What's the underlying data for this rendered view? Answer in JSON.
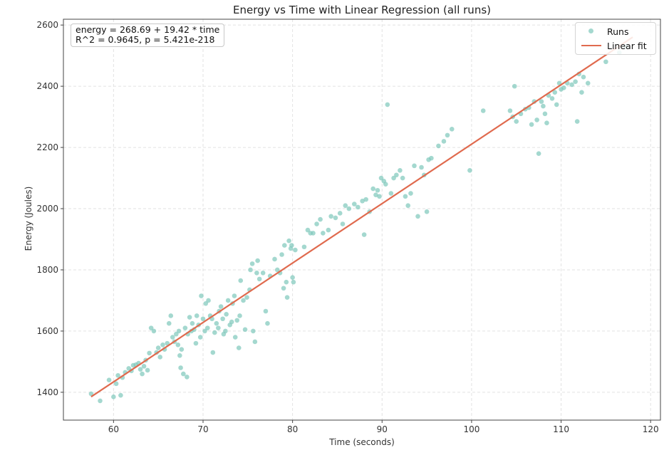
{
  "chart_data": {
    "type": "scatter",
    "title": "Energy vs Time with Linear Regression (all runs)",
    "xlabel": "Time (seconds)",
    "ylabel": "Energy (Joules)",
    "xlim": [
      54.4,
      121.1
    ],
    "ylim": [
      1309,
      2619
    ],
    "xticks": [
      60,
      70,
      80,
      90,
      100,
      110,
      120
    ],
    "yticks": [
      1400,
      1600,
      1800,
      2000,
      2200,
      2400,
      2600
    ],
    "grid": true,
    "legend_position": "upper right",
    "legend": [
      "Runs",
      "Linear fit"
    ],
    "annotation": {
      "line1": "energy = 268.69 + 19.42 * time",
      "line2": "R^2 = 0.9645, p = 5.421e-218"
    },
    "regression": {
      "intercept": 268.69,
      "slope": 19.42,
      "r_squared": 0.9645,
      "p_value": "5.421e-218",
      "x_range": [
        57.5,
        118
      ]
    },
    "colors": {
      "points": "#7ec8bb",
      "fit_line": "#e06a4e"
    },
    "series": [
      {
        "name": "Runs",
        "type": "scatter",
        "points": [
          [
            57.5,
            1395
          ],
          [
            58.5,
            1372
          ],
          [
            59.5,
            1440
          ],
          [
            60,
            1385
          ],
          [
            60.3,
            1428
          ],
          [
            60.5,
            1455
          ],
          [
            60.8,
            1390
          ],
          [
            61,
            1448
          ],
          [
            61.3,
            1465
          ],
          [
            61.7,
            1478
          ],
          [
            62,
            1470
          ],
          [
            62.2,
            1488
          ],
          [
            62.5,
            1490
          ],
          [
            62.8,
            1495
          ],
          [
            63,
            1475
          ],
          [
            63.2,
            1460
          ],
          [
            63.4,
            1485
          ],
          [
            63.6,
            1505
          ],
          [
            63.8,
            1472
          ],
          [
            64,
            1528
          ],
          [
            64.2,
            1610
          ],
          [
            64.5,
            1600
          ],
          [
            64.8,
            1530
          ],
          [
            65,
            1545
          ],
          [
            65.2,
            1515
          ],
          [
            65.5,
            1555
          ],
          [
            65.7,
            1540
          ],
          [
            66,
            1560
          ],
          [
            66.2,
            1625
          ],
          [
            66.4,
            1650
          ],
          [
            66.6,
            1580
          ],
          [
            66.8,
            1565
          ],
          [
            67,
            1590
          ],
          [
            67.2,
            1555
          ],
          [
            67.3,
            1600
          ],
          [
            67.4,
            1520
          ],
          [
            67.5,
            1480
          ],
          [
            67.6,
            1540
          ],
          [
            67.8,
            1460
          ],
          [
            68,
            1610
          ],
          [
            68.2,
            1450
          ],
          [
            68.3,
            1590
          ],
          [
            68.5,
            1645
          ],
          [
            68.7,
            1600
          ],
          [
            68.8,
            1625
          ],
          [
            69,
            1605
          ],
          [
            69.2,
            1560
          ],
          [
            69.3,
            1650
          ],
          [
            69.5,
            1620
          ],
          [
            69.7,
            1580
          ],
          [
            69.8,
            1715
          ],
          [
            70,
            1640
          ],
          [
            70.2,
            1600
          ],
          [
            70.3,
            1690
          ],
          [
            70.5,
            1610
          ],
          [
            70.6,
            1700
          ],
          [
            70.8,
            1650
          ],
          [
            71,
            1640
          ],
          [
            71.1,
            1530
          ],
          [
            71.3,
            1595
          ],
          [
            71.5,
            1625
          ],
          [
            71.7,
            1610
          ],
          [
            71.8,
            1665
          ],
          [
            72,
            1680
          ],
          [
            72.2,
            1640
          ],
          [
            72.3,
            1590
          ],
          [
            72.5,
            1600
          ],
          [
            72.6,
            1655
          ],
          [
            72.8,
            1700
          ],
          [
            73,
            1620
          ],
          [
            73.2,
            1630
          ],
          [
            73.3,
            1690
          ],
          [
            73.5,
            1715
          ],
          [
            73.6,
            1580
          ],
          [
            73.8,
            1635
          ],
          [
            74,
            1545
          ],
          [
            74.1,
            1650
          ],
          [
            74.2,
            1765
          ],
          [
            74.5,
            1700
          ],
          [
            74.7,
            1605
          ],
          [
            74.9,
            1710
          ],
          [
            75.2,
            1735
          ],
          [
            75.3,
            1800
          ],
          [
            75.5,
            1820
          ],
          [
            75.6,
            1600
          ],
          [
            75.8,
            1565
          ],
          [
            76,
            1790
          ],
          [
            76.1,
            1830
          ],
          [
            76.3,
            1770
          ],
          [
            76.7,
            1790
          ],
          [
            77,
            1665
          ],
          [
            77.2,
            1625
          ],
          [
            77.5,
            1780
          ],
          [
            78,
            1835
          ],
          [
            78.3,
            1800
          ],
          [
            78.6,
            1790
          ],
          [
            78.8,
            1850
          ],
          [
            79,
            1740
          ],
          [
            79.1,
            1880
          ],
          [
            79.3,
            1760
          ],
          [
            79.4,
            1710
          ],
          [
            79.6,
            1895
          ],
          [
            79.8,
            1870
          ],
          [
            79.9,
            1880
          ],
          [
            80,
            1775
          ],
          [
            80.1,
            1760
          ],
          [
            80.3,
            1865
          ],
          [
            81.3,
            1875
          ],
          [
            81.7,
            1930
          ],
          [
            82,
            1920
          ],
          [
            82.3,
            1920
          ],
          [
            82.7,
            1950
          ],
          [
            83.1,
            1965
          ],
          [
            83.4,
            1920
          ],
          [
            84,
            1930
          ],
          [
            84.3,
            1975
          ],
          [
            84.8,
            1970
          ],
          [
            85.3,
            1985
          ],
          [
            85.6,
            1950
          ],
          [
            85.9,
            2010
          ],
          [
            86.3,
            2000
          ],
          [
            86.9,
            2015
          ],
          [
            87.3,
            2005
          ],
          [
            87.8,
            2025
          ],
          [
            88,
            1915
          ],
          [
            88.2,
            2030
          ],
          [
            88.6,
            1990
          ],
          [
            89,
            2065
          ],
          [
            89.3,
            2045
          ],
          [
            89.5,
            2060
          ],
          [
            89.7,
            2040
          ],
          [
            89.9,
            2100
          ],
          [
            90.2,
            2090
          ],
          [
            90.4,
            2080
          ],
          [
            90.6,
            2340
          ],
          [
            91,
            2050
          ],
          [
            91.3,
            2100
          ],
          [
            91.6,
            2110
          ],
          [
            92,
            2125
          ],
          [
            92.3,
            2100
          ],
          [
            92.6,
            2040
          ],
          [
            92.9,
            2010
          ],
          [
            93.2,
            2050
          ],
          [
            93.6,
            2140
          ],
          [
            94,
            1975
          ],
          [
            94.4,
            2135
          ],
          [
            94.7,
            2110
          ],
          [
            95,
            1990
          ],
          [
            95.2,
            2160
          ],
          [
            95.5,
            2165
          ],
          [
            96.3,
            2205
          ],
          [
            96.9,
            2220
          ],
          [
            97.3,
            2240
          ],
          [
            97.8,
            2260
          ],
          [
            99.8,
            2125
          ],
          [
            101.3,
            2320
          ],
          [
            104.3,
            2320
          ],
          [
            104.6,
            2300
          ],
          [
            104.8,
            2400
          ],
          [
            105,
            2285
          ],
          [
            105.5,
            2310
          ],
          [
            106,
            2325
          ],
          [
            106.4,
            2330
          ],
          [
            106.7,
            2275
          ],
          [
            107,
            2350
          ],
          [
            107.3,
            2290
          ],
          [
            107.5,
            2180
          ],
          [
            107.8,
            2350
          ],
          [
            108,
            2335
          ],
          [
            108.2,
            2310
          ],
          [
            108.4,
            2280
          ],
          [
            108.6,
            2370
          ],
          [
            109,
            2360
          ],
          [
            109.3,
            2380
          ],
          [
            109.5,
            2340
          ],
          [
            109.8,
            2410
          ],
          [
            110,
            2390
          ],
          [
            110.3,
            2395
          ],
          [
            110.7,
            2410
          ],
          [
            111.2,
            2405
          ],
          [
            111.6,
            2415
          ],
          [
            111.8,
            2285
          ],
          [
            112,
            2440
          ],
          [
            112.3,
            2380
          ],
          [
            112.5,
            2430
          ],
          [
            113,
            2410
          ],
          [
            115,
            2480
          ],
          [
            116.5,
            2510
          ],
          [
            117.2,
            2530
          ]
        ]
      },
      {
        "name": "Linear fit",
        "type": "line",
        "points": [
          [
            57.5,
            1385.3
          ],
          [
            118,
            2560.3
          ]
        ]
      }
    ]
  }
}
